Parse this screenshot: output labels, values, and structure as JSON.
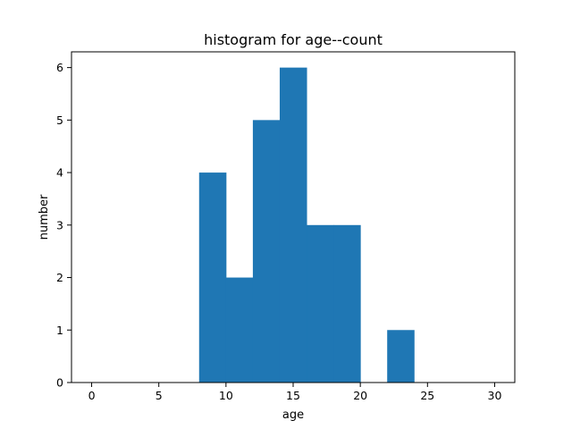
{
  "chart_data": {
    "type": "bar",
    "title": "histogram for age--count",
    "xlabel": "age",
    "ylabel": "number",
    "xlim": [
      -1.5,
      31.5
    ],
    "ylim": [
      0,
      6.3
    ],
    "xticks": [
      0,
      5,
      10,
      15,
      20,
      25,
      30
    ],
    "yticks": [
      0,
      1,
      2,
      3,
      4,
      5,
      6
    ],
    "grid": false,
    "bar_color": "#1f77b4",
    "bins": [
      {
        "x0": 8,
        "x1": 10,
        "value": 4
      },
      {
        "x0": 10,
        "x1": 12,
        "value": 2
      },
      {
        "x0": 12,
        "x1": 14,
        "value": 5
      },
      {
        "x0": 14,
        "x1": 16,
        "value": 6
      },
      {
        "x0": 16,
        "x1": 18,
        "value": 3
      },
      {
        "x0": 18,
        "x1": 20,
        "value": 3
      },
      {
        "x0": 20,
        "x1": 22,
        "value": 0
      },
      {
        "x0": 22,
        "x1": 24,
        "value": 1
      }
    ]
  }
}
